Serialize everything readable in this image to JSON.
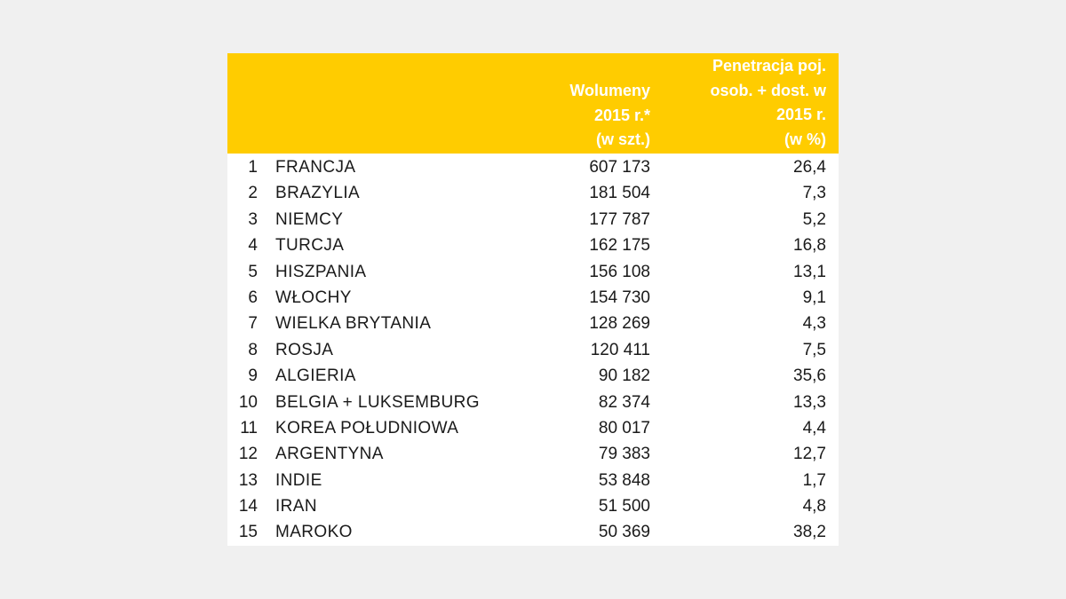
{
  "colors": {
    "background": "#f0f0f0",
    "header": "#ffcc00",
    "header_text": "#ffffff",
    "table_bg": "#ffffff",
    "text": "#1a1a1a"
  },
  "header": {
    "volume": [
      "Wolumeny",
      "2015 r.*",
      "(w szt.)"
    ],
    "penetration": [
      "Penetracja poj.",
      "osob. + dost. w",
      "2015 r.",
      "(w %)"
    ]
  },
  "rows": [
    {
      "rank": "1",
      "country": "FRANCJA",
      "volume": "607 173",
      "penetration": "26,4"
    },
    {
      "rank": "2",
      "country": "BRAZYLIA",
      "volume": "181 504",
      "penetration": "7,3"
    },
    {
      "rank": "3",
      "country": "NIEMCY",
      "volume": "177 787",
      "penetration": "5,2"
    },
    {
      "rank": "4",
      "country": "TURCJA",
      "volume": "162 175",
      "penetration": "16,8"
    },
    {
      "rank": "5",
      "country": "HISZPANIA",
      "volume": "156 108",
      "penetration": "13,1"
    },
    {
      "rank": "6",
      "country": "WŁOCHY",
      "volume": "154 730",
      "penetration": "9,1"
    },
    {
      "rank": "7",
      "country": "WIELKA BRYTANIA",
      "volume": "128 269",
      "penetration": "4,3"
    },
    {
      "rank": "8",
      "country": "ROSJA",
      "volume": "120 411",
      "penetration": "7,5"
    },
    {
      "rank": "9",
      "country": "ALGIERIA",
      "volume": "90 182",
      "penetration": "35,6"
    },
    {
      "rank": "10",
      "country": "BELGIA + LUKSEMBURG",
      "volume": "82 374",
      "penetration": "13,3"
    },
    {
      "rank": "11",
      "country": "KOREA POŁUDNIOWA",
      "volume": "80 017",
      "penetration": "4,4"
    },
    {
      "rank": "12",
      "country": "ARGENTYNA",
      "volume": "79 383",
      "penetration": "12,7"
    },
    {
      "rank": "13",
      "country": "INDIE",
      "volume": "53 848",
      "penetration": "1,7"
    },
    {
      "rank": "14",
      "country": "IRAN",
      "volume": "51 500",
      "penetration": "4,8"
    },
    {
      "rank": "15",
      "country": "MAROKO",
      "volume": "50 369",
      "penetration": "38,2"
    }
  ]
}
